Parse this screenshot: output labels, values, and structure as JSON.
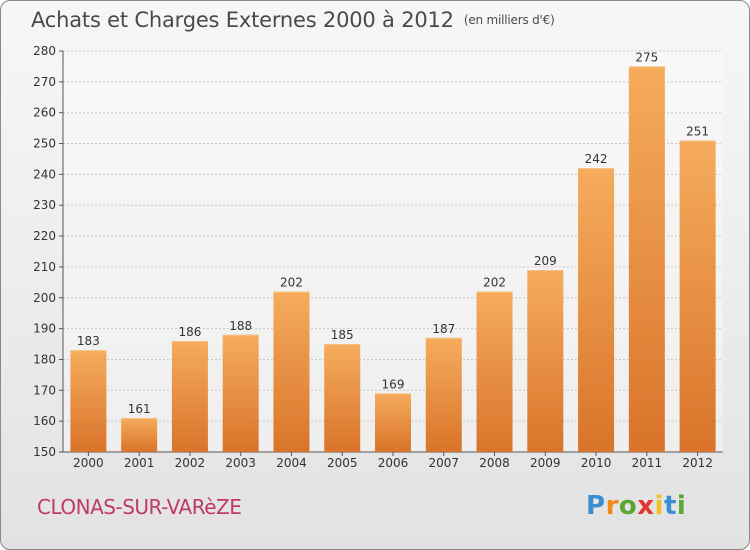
{
  "title": "Achats et Charges Externes 2000 à 2012",
  "unit_note": "(en milliers d'€)",
  "commune": "CLONAS-SUR-VARèZE",
  "logo": {
    "letters": [
      "P",
      "r",
      "o",
      "x",
      "i",
      "t",
      "i"
    ],
    "colors": [
      "#3a8fd0",
      "#f08a1c",
      "#5aa830",
      "#e0382f",
      "#f0c020",
      "#3a8fd0",
      "#5aa830"
    ]
  },
  "colors": {
    "bar": "#f0943c",
    "bar_light": "#f5ac5c",
    "bar_dark": "#d9742a",
    "commune_text": "#c0396a"
  },
  "chart_data": {
    "type": "bar",
    "categories": [
      "2000",
      "2001",
      "2002",
      "2003",
      "2004",
      "2005",
      "2006",
      "2007",
      "2008",
      "2009",
      "2010",
      "2011",
      "2012"
    ],
    "values": [
      183,
      161,
      186,
      188,
      202,
      185,
      169,
      187,
      202,
      209,
      242,
      275,
      251
    ],
    "title": "Achats et Charges Externes 2000 à 2012",
    "ylim": [
      150,
      280
    ],
    "yticks": [
      150,
      160,
      170,
      180,
      190,
      200,
      210,
      220,
      230,
      240,
      250,
      260,
      270,
      280
    ],
    "grid": true,
    "data_labels": true
  }
}
